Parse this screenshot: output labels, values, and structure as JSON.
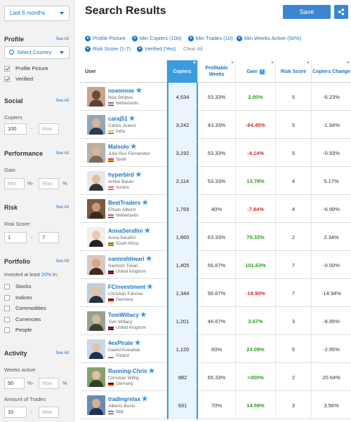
{
  "sidebar": {
    "period": "Last 6 months",
    "profile": {
      "title": "Profile",
      "see_all": "See All",
      "country_select": "Select Country",
      "options": [
        {
          "label": "Profile Picture",
          "checked": true
        },
        {
          "label": "Verified",
          "checked": true
        }
      ]
    },
    "social": {
      "title": "Social",
      "see_all": "See All",
      "copiers_label": "Copiers",
      "copiers_min": "100",
      "copiers_max_placeholder": "Max"
    },
    "performance": {
      "title": "Performance",
      "see_all": "See All",
      "gain_label": "Gain",
      "min_placeholder": "Min",
      "max_placeholder": "Max",
      "pct_sep": "%-",
      "pct_end": "%"
    },
    "risk": {
      "title": "Risk",
      "see_all": "See All",
      "score_label": "Risk Score",
      "min": "1",
      "max": "7"
    },
    "portfolio": {
      "title": "Portfolio",
      "see_all": "See All",
      "invested_prefix": "Invested at least ",
      "invested_pct": "20%",
      "invested_suffix": " In:",
      "items": [
        "Stocks",
        "Indices",
        "Commodities",
        "Currencies",
        "People"
      ]
    },
    "activity": {
      "title": "Activity",
      "see_all": "See All",
      "weeks_label": "Weeks active",
      "weeks_min": "50",
      "max_placeholder": "Max",
      "pct_sep": "%-",
      "pct_end": "%",
      "trades_label": "Amount of Trades",
      "trades_min": "10"
    }
  },
  "header": {
    "title": "Search Results",
    "save_label": "Save"
  },
  "filters": {
    "chips": [
      "Profile Picture",
      "Min Copiers (100)",
      "Min Trades (10)",
      "Min Weeks Active (50%)",
      "Risk Score (1-7)",
      "Verified (Yes)"
    ],
    "clear_all": "Clear All"
  },
  "table": {
    "columns": {
      "user": "User",
      "copiers": "Copiers",
      "profitable": "Profitable Weeks",
      "gain": "Gain",
      "gain_info": "i",
      "risk": "Risk Score",
      "change": "Copiers Change"
    },
    "rows": [
      {
        "username": "noasnoas",
        "name": "Noa Strijbos",
        "country": "Netherlands",
        "copiers": "4,534",
        "profitable": "53.33%",
        "gain": "2.00%",
        "gain_sign": "pos",
        "risk": "5",
        "change": "-6.23%"
      },
      {
        "username": "caraj51",
        "name": "Carlos Juarez",
        "country": "India",
        "copiers": "3,242",
        "profitable": "43.33%",
        "gain": "-64.45%",
        "gain_sign": "neg",
        "risk": "5",
        "change": "-1.94%"
      },
      {
        "username": "Malsolo",
        "name": "Julio Rus Fernandez",
        "country": "Spain",
        "copiers": "3,192",
        "profitable": "53.33%",
        "gain": "-4.14%",
        "gain_sign": "neg",
        "risk": "5",
        "change": "-0.93%"
      },
      {
        "username": "hyperbird",
        "name": "Andre Bauer",
        "country": "Austria",
        "copiers": "2,114",
        "profitable": "53.33%",
        "gain": "13.78%",
        "gain_sign": "pos",
        "risk": "4",
        "change": "5.17%"
      },
      {
        "username": "BestTraders",
        "name": "Ehsan Alborzi",
        "country": "Netherlands",
        "copiers": "1,769",
        "profitable": "40%",
        "gain": "-7.84%",
        "gain_sign": "neg",
        "risk": "4",
        "change": "-6.99%"
      },
      {
        "username": "AnnaSerafini",
        "name": "Anna Serafini",
        "country": "South Africa",
        "copiers": "1,660",
        "profitable": "63.33%",
        "gain": "75.33%",
        "gain_sign": "pos",
        "risk": "2",
        "change": "2.34%"
      },
      {
        "username": "santoshtiwari",
        "name": "Santosh Tiwari",
        "country": "United Kingdom",
        "copiers": "1,405",
        "profitable": "56.67%",
        "gain": "101.63%",
        "gain_sign": "pos",
        "risk": "7",
        "change": "-0.50%"
      },
      {
        "username": "FCinvestment",
        "name": "Christian Fahmer",
        "country": "Germany",
        "copiers": "1,344",
        "profitable": "56.67%",
        "gain": "-18.90%",
        "gain_sign": "neg",
        "risk": "7",
        "change": "-14.94%"
      },
      {
        "username": "TomWillacy",
        "name": "Tom Willacy",
        "country": "United Kingdom",
        "copiers": "1,201",
        "profitable": "46.67%",
        "gain": "3.67%",
        "gain_sign": "pos",
        "risk": "3",
        "change": "-8.95%"
      },
      {
        "username": "4exPirate",
        "name": "Dawid Kowalski",
        "country": "Poland",
        "copiers": "1,120",
        "profitable": "60%",
        "gain": "23.09%",
        "gain_sign": "pos",
        "risk": "5",
        "change": "-2.95%"
      },
      {
        "username": "Running-Chris",
        "name": "Christian Wittig",
        "country": "Germany",
        "copiers": "982",
        "profitable": "65.33%",
        "gain": ">300%",
        "gain_sign": "pos",
        "risk": "2",
        "change": "20.64%"
      },
      {
        "username": "tradingrelax",
        "name": "Alberto Bosio",
        "country": "Italy",
        "copiers": "931",
        "profitable": "70%",
        "gain": "14.59%",
        "gain_sign": "pos",
        "risk": "3",
        "change": "3.56%"
      }
    ]
  },
  "colors": {
    "accent": "#3a9be0",
    "link": "#1a73c7",
    "positive": "#2e9a24",
    "negative": "#d02b2b"
  }
}
